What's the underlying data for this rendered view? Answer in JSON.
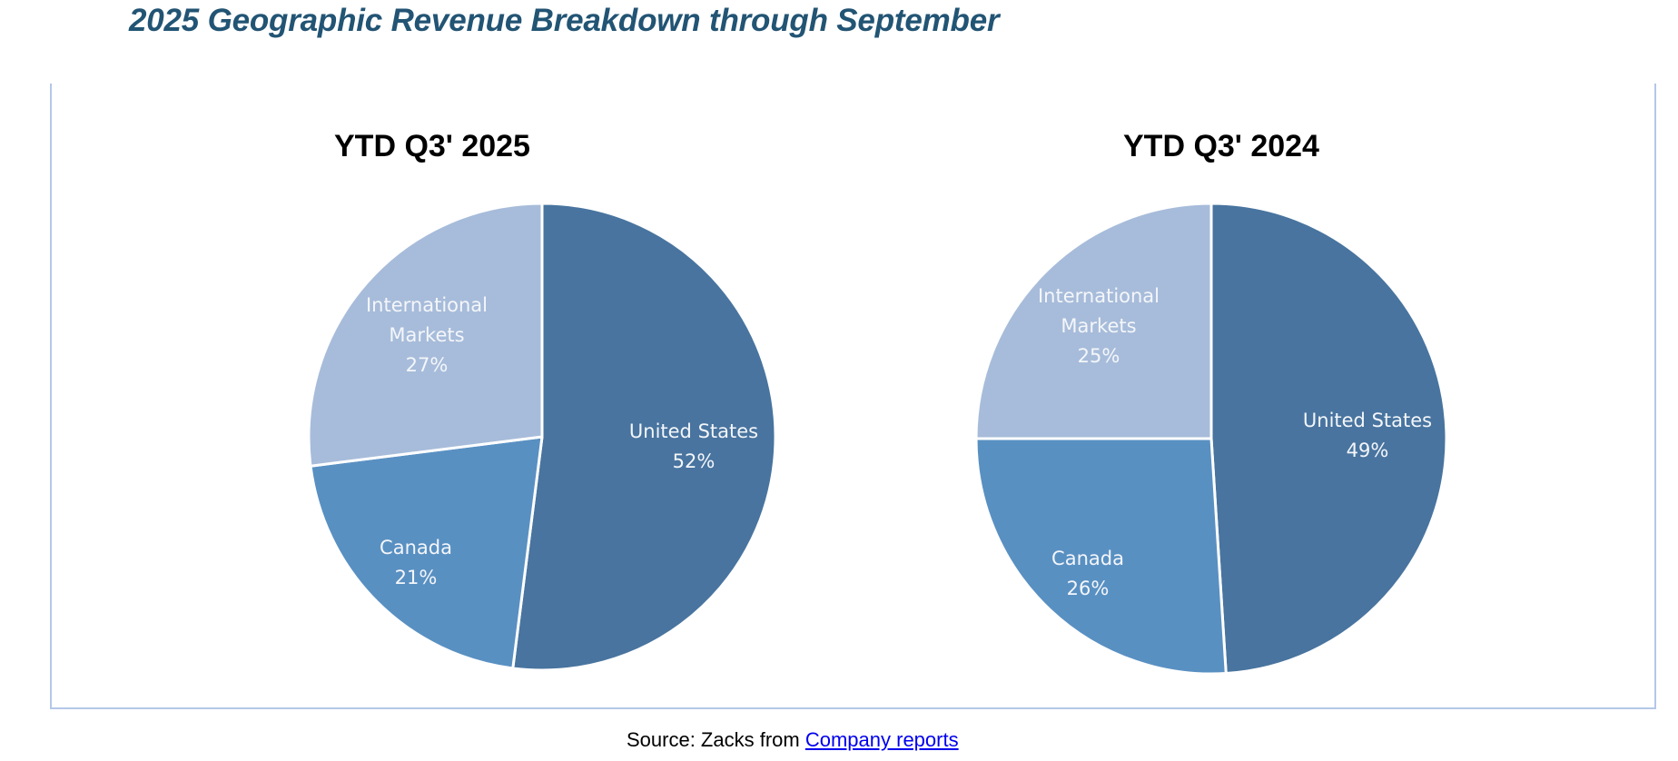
{
  "title": "2025 Geographic Revenue Breakdown through September",
  "source": {
    "prefix": "Source: Zacks from ",
    "link_text": "Company reports"
  },
  "colors": {
    "title": "#225474",
    "frame_border": "#b4c7e7",
    "link": "#0000ee",
    "slice_separator": "#ffffff"
  },
  "chart_data": [
    {
      "type": "pie",
      "title": "YTD Q3' 2025",
      "start": "top",
      "direction": "clockwise",
      "slices": [
        {
          "label": "United States",
          "value": 52,
          "display": "52%",
          "color": "#48749f"
        },
        {
          "label": "Canada",
          "value": 21,
          "display": "21%",
          "color": "#5990c2"
        },
        {
          "label": "International Markets",
          "label_lines": [
            "International",
            "Markets"
          ],
          "value": 27,
          "display": "27%",
          "color": "#a7bcda"
        }
      ]
    },
    {
      "type": "pie",
      "title": "YTD Q3' 2024",
      "start": "top",
      "direction": "clockwise",
      "slices": [
        {
          "label": "United States",
          "value": 49,
          "display": "49%",
          "color": "#48749f"
        },
        {
          "label": "Canada",
          "value": 26,
          "display": "26%",
          "color": "#5990c2"
        },
        {
          "label": "International Markets",
          "label_lines": [
            "International",
            "Markets"
          ],
          "value": 25,
          "display": "25%",
          "color": "#a7bcda"
        }
      ]
    }
  ]
}
